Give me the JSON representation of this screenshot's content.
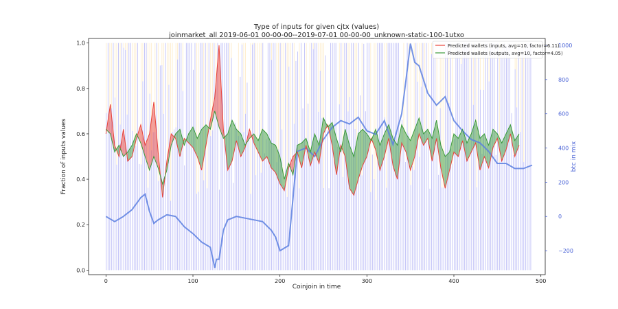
{
  "chart_data": {
    "type": "line",
    "title": "Type of inputs for given cjtx (values)",
    "subtitle": "joinmarket_all 2019-06-01 00-00-00--2019-07-01 00-00-00_unknown-static-100-1utxo",
    "xlabel": "Coinjoin in time",
    "ylabel": "Fraction of inputs values",
    "y2label": "btc in mix",
    "xlim": [
      -20,
      505
    ],
    "ylim": [
      -0.02,
      1.02
    ],
    "y2lim": [
      -340,
      1040
    ],
    "xticks": [
      "0",
      "100",
      "200",
      "300",
      "400",
      "500"
    ],
    "yticks": [
      "0.0",
      "0.2",
      "0.4",
      "0.6",
      "0.8",
      "1.0"
    ],
    "y2ticks": [
      "−200",
      "0",
      "200",
      "400",
      "600",
      "800",
      "1000"
    ],
    "legend_position": "top-right",
    "grid": false,
    "colors": {
      "inputs": "#e8423a",
      "outputs": "#3a9a3a",
      "btc_line": "#5b7fe0",
      "background_bars": "#8a8cf0",
      "background_bars_upper": "#fcd78e"
    },
    "series": [
      {
        "name": "Predicted wallets (inputs, avg=10, factor=6.11)",
        "x": [
          0,
          5,
          10,
          15,
          20,
          25,
          30,
          35,
          40,
          45,
          50,
          55,
          60,
          65,
          70,
          75,
          80,
          85,
          90,
          95,
          100,
          105,
          110,
          115,
          120,
          125,
          130,
          135,
          140,
          145,
          150,
          155,
          160,
          165,
          170,
          175,
          180,
          185,
          190,
          195,
          200,
          205,
          210,
          215,
          220,
          225,
          230,
          235,
          240,
          245,
          250,
          255,
          260,
          265,
          270,
          275,
          280,
          285,
          290,
          295,
          300,
          305,
          310,
          315,
          320,
          325,
          330,
          335,
          340,
          345,
          350,
          355,
          360,
          365,
          370,
          375,
          380,
          385,
          390,
          395,
          400,
          405,
          410,
          415,
          420,
          425,
          430,
          435,
          440,
          445,
          450,
          455,
          460,
          465,
          470,
          475
        ],
        "values": [
          0.6,
          0.73,
          0.55,
          0.5,
          0.62,
          0.48,
          0.5,
          0.58,
          0.64,
          0.55,
          0.6,
          0.74,
          0.52,
          0.32,
          0.48,
          0.6,
          0.58,
          0.5,
          0.58,
          0.56,
          0.54,
          0.5,
          0.44,
          0.55,
          0.66,
          0.76,
          0.99,
          0.62,
          0.44,
          0.48,
          0.57,
          0.5,
          0.54,
          0.62,
          0.56,
          0.52,
          0.48,
          0.5,
          0.45,
          0.43,
          0.38,
          0.35,
          0.45,
          0.5,
          0.52,
          0.45,
          0.55,
          0.46,
          0.52,
          0.47,
          0.6,
          0.64,
          0.55,
          0.42,
          0.55,
          0.5,
          0.36,
          0.33,
          0.4,
          0.46,
          0.5,
          0.58,
          0.53,
          0.44,
          0.5,
          0.58,
          0.46,
          0.4,
          0.56,
          0.52,
          0.44,
          0.5,
          0.6,
          0.55,
          0.58,
          0.48,
          0.58,
          0.45,
          0.36,
          0.44,
          0.52,
          0.5,
          0.57,
          0.48,
          0.52,
          0.56,
          0.44,
          0.5,
          0.45,
          0.54,
          0.58,
          0.48,
          0.53,
          0.6,
          0.5,
          0.55
        ]
      },
      {
        "name": "Predicted wallets (outputs, avg=10, factor=4.05)",
        "x": [
          0,
          5,
          10,
          15,
          20,
          25,
          30,
          35,
          40,
          45,
          50,
          55,
          60,
          65,
          70,
          75,
          80,
          85,
          90,
          95,
          100,
          105,
          110,
          115,
          120,
          125,
          130,
          135,
          140,
          145,
          150,
          155,
          160,
          165,
          170,
          175,
          180,
          185,
          190,
          195,
          200,
          205,
          210,
          215,
          220,
          225,
          230,
          235,
          240,
          245,
          250,
          255,
          260,
          265,
          270,
          275,
          280,
          285,
          290,
          295,
          300,
          305,
          310,
          315,
          320,
          325,
          330,
          335,
          340,
          345,
          350,
          355,
          360,
          365,
          370,
          375,
          380,
          385,
          390,
          395,
          400,
          405,
          410,
          415,
          420,
          425,
          430,
          435,
          440,
          445,
          450,
          455,
          460,
          465,
          470,
          475
        ],
        "values": [
          0.62,
          0.6,
          0.52,
          0.55,
          0.5,
          0.52,
          0.55,
          0.6,
          0.56,
          0.5,
          0.44,
          0.5,
          0.45,
          0.38,
          0.44,
          0.55,
          0.6,
          0.62,
          0.55,
          0.6,
          0.63,
          0.58,
          0.62,
          0.64,
          0.62,
          0.7,
          0.63,
          0.58,
          0.6,
          0.66,
          0.62,
          0.6,
          0.55,
          0.58,
          0.6,
          0.57,
          0.62,
          0.6,
          0.56,
          0.55,
          0.5,
          0.4,
          0.47,
          0.42,
          0.55,
          0.56,
          0.58,
          0.52,
          0.6,
          0.55,
          0.67,
          0.63,
          0.65,
          0.58,
          0.52,
          0.62,
          0.55,
          0.5,
          0.6,
          0.62,
          0.6,
          0.57,
          0.62,
          0.55,
          0.6,
          0.64,
          0.58,
          0.55,
          0.64,
          0.6,
          0.57,
          0.62,
          0.67,
          0.6,
          0.62,
          0.58,
          0.66,
          0.55,
          0.5,
          0.52,
          0.6,
          0.58,
          0.62,
          0.56,
          0.6,
          0.66,
          0.58,
          0.6,
          0.55,
          0.62,
          0.6,
          0.56,
          0.6,
          0.64,
          0.57,
          0.6
        ]
      },
      {
        "name": "btc in mix",
        "axis": "right",
        "x": [
          0,
          10,
          20,
          30,
          40,
          45,
          50,
          55,
          60,
          70,
          80,
          90,
          100,
          110,
          120,
          125,
          127,
          130,
          135,
          140,
          150,
          160,
          170,
          180,
          190,
          195,
          200,
          210,
          220,
          230,
          240,
          250,
          260,
          270,
          280,
          290,
          300,
          310,
          320,
          330,
          340,
          345,
          350,
          355,
          360,
          370,
          380,
          390,
          400,
          410,
          420,
          430,
          440,
          450,
          460,
          470,
          480,
          490
        ],
        "values": [
          0,
          -30,
          0,
          40,
          110,
          130,
          30,
          -40,
          -20,
          10,
          0,
          -60,
          -100,
          -150,
          -180,
          -300,
          -250,
          -250,
          -80,
          -20,
          0,
          -10,
          -20,
          -30,
          -80,
          -120,
          -200,
          -170,
          380,
          400,
          350,
          450,
          520,
          560,
          540,
          580,
          500,
          480,
          560,
          420,
          600,
          800,
          1010,
          900,
          880,
          720,
          650,
          700,
          560,
          500,
          450,
          430,
          380,
          310,
          310,
          280,
          280,
          300
        ]
      }
    ]
  }
}
